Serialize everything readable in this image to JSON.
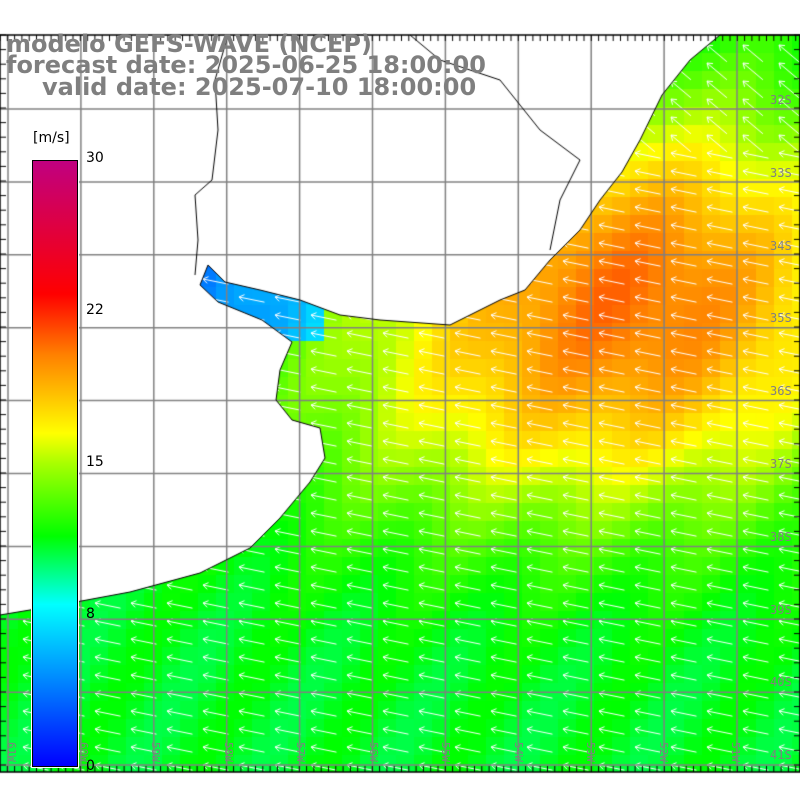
{
  "title": {
    "model": "modelo GEFS-WAVE (NCEP)",
    "forecast": "forecast date: 2025-06-25 18:00:00",
    "valid": "valid date: 2025-07-10 18:00:00"
  },
  "colorbar": {
    "unit": "[m/s]",
    "ticks": [
      "30",
      "22",
      "15",
      "8",
      "0"
    ],
    "min": 0,
    "max": 30
  },
  "axes": {
    "longitudes": [
      "61W",
      "60W",
      "59W",
      "58W",
      "57W",
      "56W",
      "55W",
      "54W",
      "53W",
      "52W",
      "51W"
    ],
    "latitudes": [
      "32S",
      "33S",
      "34S",
      "35S",
      "36S",
      "37S",
      "38S",
      "39S",
      "40S",
      "41S"
    ]
  },
  "colors": {
    "title": "#7f7f7f",
    "grid": "#808080",
    "coast": "#000000",
    "arrows": "#ffffff"
  }
}
